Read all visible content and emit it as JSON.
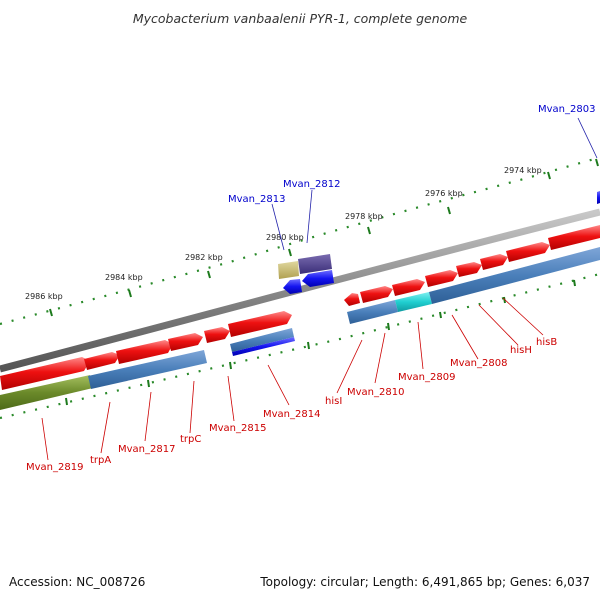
{
  "title": "Mycobacterium vanbaalenii PYR-1, complete genome",
  "footer": {
    "accession": "Accession: NC_008726",
    "summary": "Topology: circular; Length: 6,491,865 bp; Genes: 6,037"
  },
  "colors": {
    "forward_cds": "#e8141a",
    "reverse_cds": "#1010e8",
    "reverse_gene": "#4a86c0",
    "backbone": "#8a8a8a",
    "ticks": "#1d7a1d",
    "forward_label": "#cc0000",
    "reverse_label": "#0000cc"
  },
  "scale": {
    "unit": "kbp",
    "ticks": [
      {
        "label": "2974 kbp"
      },
      {
        "label": "2976 kbp"
      },
      {
        "label": "2978 kbp"
      },
      {
        "label": "2980 kbp"
      },
      {
        "label": "2982 kbp"
      },
      {
        "label": "2984 kbp"
      },
      {
        "label": "2986 kbp"
      }
    ]
  },
  "gene_labels": [
    {
      "name": "Mvan_2803",
      "strand": "reverse"
    },
    {
      "name": "Mvan_2812",
      "strand": "reverse"
    },
    {
      "name": "Mvan_2813",
      "strand": "reverse"
    },
    {
      "name": "hisB",
      "strand": "forward"
    },
    {
      "name": "hisH",
      "strand": "forward"
    },
    {
      "name": "Mvan_2808",
      "strand": "forward"
    },
    {
      "name": "Mvan_2809",
      "strand": "forward"
    },
    {
      "name": "Mvan_2810",
      "strand": "forward"
    },
    {
      "name": "hisI",
      "strand": "forward"
    },
    {
      "name": "Mvan_2814",
      "strand": "forward"
    },
    {
      "name": "Mvan_2815",
      "strand": "forward"
    },
    {
      "name": "trpC",
      "strand": "forward"
    },
    {
      "name": "Mvan_2817",
      "strand": "forward"
    },
    {
      "name": "trpA",
      "strand": "forward"
    },
    {
      "name": "Mvan_2819",
      "strand": "forward"
    }
  ]
}
